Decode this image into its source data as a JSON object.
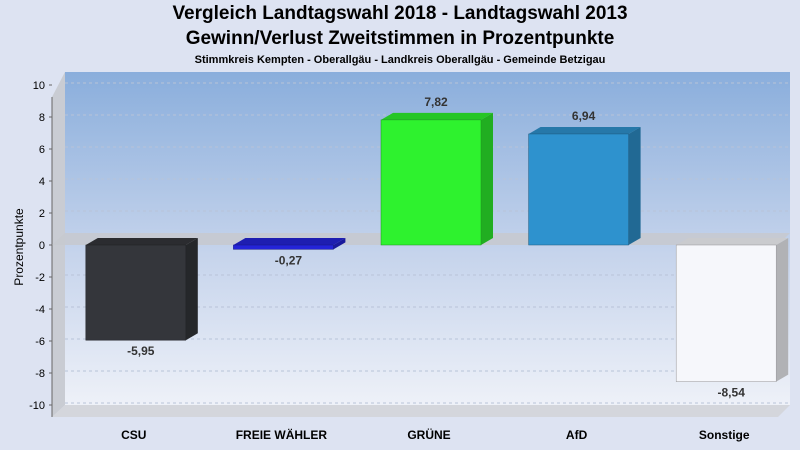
{
  "chart_data": {
    "type": "bar",
    "title": "Vergleich Landtagswahl 2018 - Landtagswahl 2013",
    "title2": "Gewinn/Verlust Zweitstimmen in Prozentpunkte",
    "subtitle": "Stimmkreis Kempten - Oberallgäu - Landkreis Oberallgäu - Gemeinde Betzigau",
    "xlabel": "",
    "ylabel": "Prozentpunkte",
    "ylim": [
      -10,
      10
    ],
    "yticks": [
      10,
      8,
      6,
      4,
      2,
      0,
      -2,
      -4,
      -6,
      -8,
      -10
    ],
    "categories": [
      "CSU",
      "FREIE WÄHLER",
      "GRÜNE",
      "AfD",
      "Sonstige"
    ],
    "values": [
      -5.95,
      -0.27,
      7.82,
      6.94,
      -8.54
    ],
    "value_labels": [
      "-5,95",
      "-0,27",
      "7,82",
      "6,94",
      "-8,54"
    ],
    "colors": [
      "#34363b",
      "#2424d8",
      "#2ef22e",
      "#2e92ce",
      "#f6f7fb"
    ],
    "grid": true
  }
}
